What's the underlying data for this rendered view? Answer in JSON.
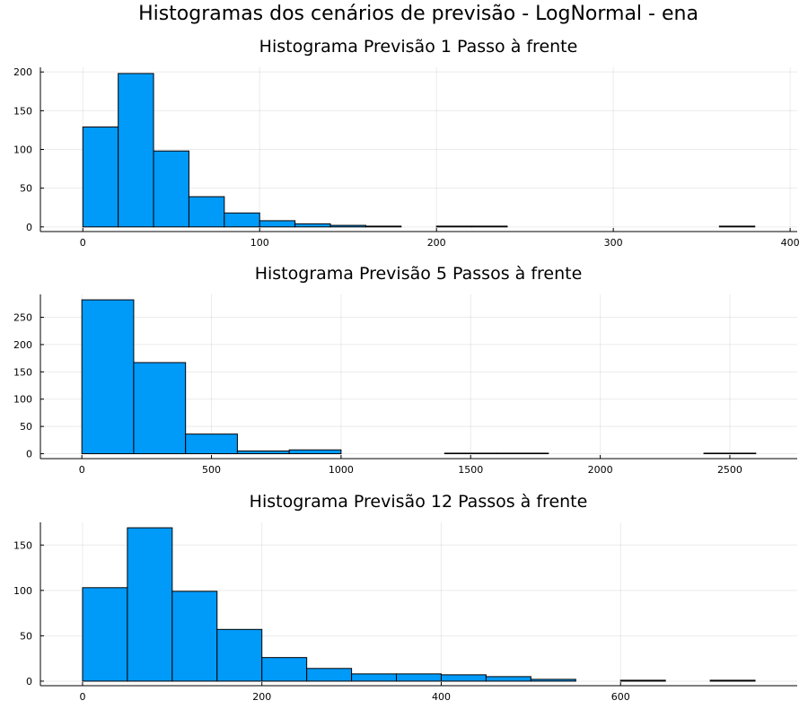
{
  "figure": {
    "title": "Histogramas dos cenários de previsão - LogNormal - ena"
  },
  "chart_data": [
    {
      "type": "bar",
      "title": "Histograma Previsão 1 Passo à frente",
      "xlabel": "",
      "ylabel": "",
      "xlim": [
        -24,
        404
      ],
      "ylim": [
        -6,
        206
      ],
      "xticks": [
        0,
        100,
        200,
        300,
        400
      ],
      "yticks": [
        0,
        50,
        100,
        150,
        200
      ],
      "grid": true,
      "bin_edges": [
        0,
        20,
        40,
        60,
        80,
        100,
        120,
        140,
        160,
        180,
        200,
        220,
        240,
        260,
        280,
        300,
        320,
        340,
        360,
        380
      ],
      "counts": [
        129,
        198,
        98,
        39,
        18,
        8,
        4,
        2,
        1,
        0,
        1,
        1,
        0,
        0,
        0,
        0,
        0,
        0,
        1
      ],
      "color": "#009AF9"
    },
    {
      "type": "bar",
      "title": "Histograma Previsão 5 Passos à frente",
      "xlabel": "",
      "ylabel": "",
      "xlim": [
        -160,
        2760
      ],
      "ylim": [
        -9,
        292
      ],
      "xticks": [
        0,
        500,
        1000,
        1500,
        2000,
        2500
      ],
      "yticks": [
        0,
        50,
        100,
        150,
        200,
        250
      ],
      "grid": true,
      "bin_edges": [
        0,
        200,
        400,
        600,
        800,
        1000,
        1200,
        1400,
        1600,
        1800,
        2000,
        2200,
        2400,
        2600
      ],
      "counts": [
        282,
        167,
        36,
        5,
        7,
        0,
        0,
        1,
        1,
        0,
        0,
        0,
        1
      ],
      "color": "#009AF9"
    },
    {
      "type": "bar",
      "title": "Histograma Previsão 12 Passos à frente",
      "xlabel": "",
      "ylabel": "",
      "xlim": [
        -47,
        797
      ],
      "ylim": [
        -5,
        175
      ],
      "xticks": [
        0,
        200,
        400,
        600
      ],
      "yticks": [
        0,
        50,
        100,
        150
      ],
      "grid": true,
      "bin_edges": [
        0,
        50,
        100,
        150,
        200,
        250,
        300,
        350,
        400,
        450,
        500,
        550,
        600,
        650,
        700,
        750
      ],
      "counts": [
        103,
        169,
        99,
        57,
        26,
        14,
        8,
        8,
        7,
        5,
        2,
        0,
        1,
        0,
        1
      ],
      "color": "#009AF9"
    }
  ]
}
